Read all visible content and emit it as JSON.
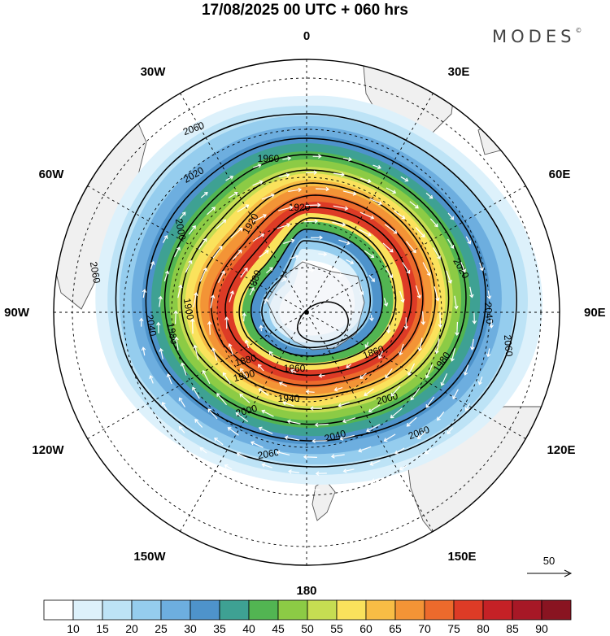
{
  "map": {
    "title": "17/08/2025  00 UTC  + 060 hrs",
    "brand": "MODES",
    "brand_mark": "©",
    "projection": "south-polar-stereographic",
    "longitude_labels": {
      "top": "0",
      "bottom": "180",
      "right": "90E",
      "left": "90W",
      "n30e": "30E",
      "n60e": "60E",
      "n120e": "120E",
      "n150e": "150E",
      "n30w": "30W",
      "n60w": "60W",
      "n120w": "120W",
      "n150w": "150W"
    },
    "contour_labels": [
      "2060",
      "2060",
      "2060",
      "2060",
      "2060",
      "2040",
      "2040",
      "2040",
      "2020",
      "2020",
      "2000",
      "2000",
      "2000",
      "1980",
      "1980",
      "1960",
      "1940",
      "1920",
      "1920",
      "1900",
      "1900",
      "1880",
      "1880",
      "1860",
      "1860"
    ],
    "wind_reference": "50",
    "colorbar": {
      "labels": [
        "10",
        "15",
        "20",
        "25",
        "30",
        "35",
        "40",
        "45",
        "50",
        "55",
        "60",
        "65",
        "70",
        "75",
        "80",
        "85",
        "90"
      ],
      "colors": [
        "#ffffff",
        "#ddf1fb",
        "#bde3f6",
        "#95cdee",
        "#6daedf",
        "#4e93cb",
        "#3ea193",
        "#52b552",
        "#8ccb45",
        "#c6dd52",
        "#fae25c",
        "#f8bd45",
        "#f39436",
        "#ec6a2c",
        "#dd3b26",
        "#c52126",
        "#a71826",
        "#891421"
      ]
    },
    "colors": {
      "background": "#ffffff",
      "land": "#f0f0f0",
      "coastline": "#555555",
      "contour": "#000000",
      "wind_arrow": "#ffffff"
    }
  }
}
